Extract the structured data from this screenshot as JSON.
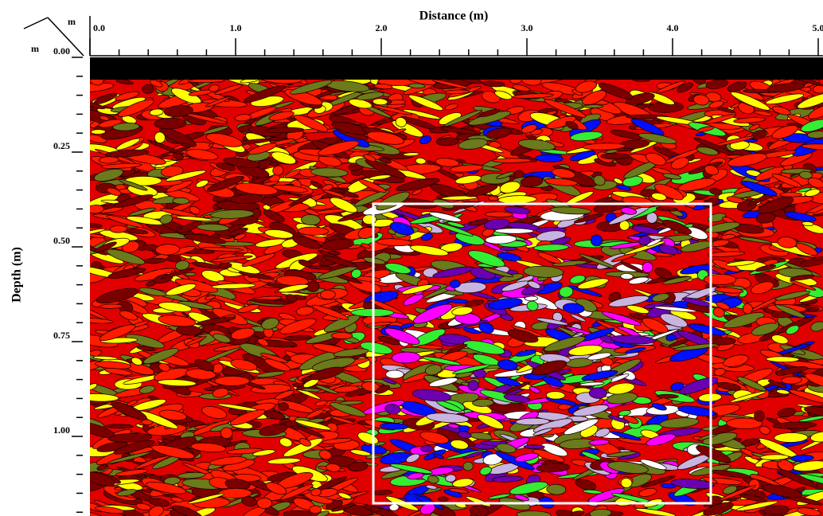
{
  "chart_data": {
    "type": "radargram",
    "title": "Distance (m)",
    "y_label": "Depth (m)",
    "corner_x_unit": "m",
    "corner_y_unit": "m",
    "xlim": [
      0,
      5.0
    ],
    "xticks": [
      {
        "value": 0,
        "label": "0.0"
      },
      {
        "value": 1,
        "label": "1.0"
      },
      {
        "value": 2,
        "label": "2.0"
      },
      {
        "value": 3,
        "label": "3.0"
      },
      {
        "value": 4,
        "label": "4.0"
      },
      {
        "value": 5,
        "label": "5.0"
      }
    ],
    "xminorticks": [
      0.2,
      0.4,
      0.6,
      0.8,
      1.2,
      1.4,
      1.6,
      1.8,
      2.2,
      2.4,
      2.6,
      2.8,
      3.2,
      3.4,
      3.6,
      3.8,
      4.2,
      4.4,
      4.6,
      4.8
    ],
    "ylim": [
      0,
      1.21
    ],
    "yticks": [
      {
        "value": 0,
        "label": "0.00"
      },
      {
        "value": 0.25,
        "label": "0.25"
      },
      {
        "value": 0.5,
        "label": "0.50"
      },
      {
        "value": 0.75,
        "label": "0.75"
      },
      {
        "value": 1,
        "label": "1.00"
      }
    ],
    "yminorticks": [
      0.05,
      0.1,
      0.15,
      0.2,
      0.3,
      0.35,
      0.4,
      0.45,
      0.55,
      0.6,
      0.65,
      0.7,
      0.8,
      0.85,
      0.9,
      0.95,
      1.05,
      1.1,
      1.15,
      1.2
    ]
  }
}
